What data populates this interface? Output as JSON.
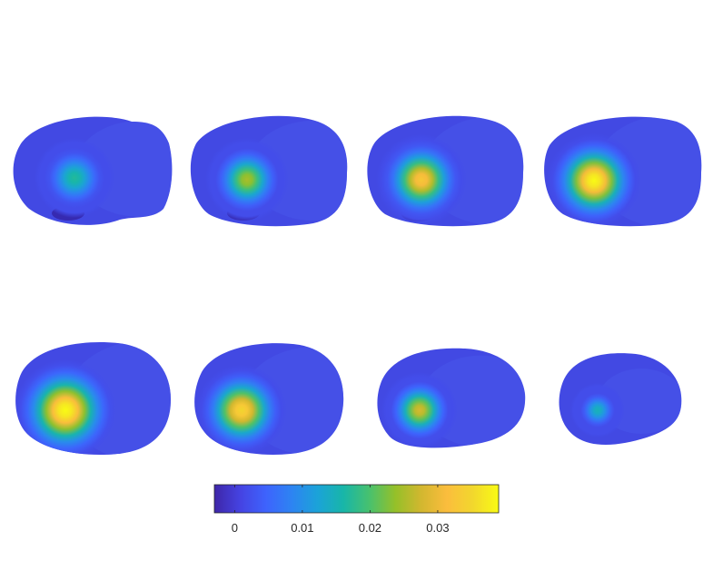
{
  "figure": {
    "panel_count": 8,
    "colormap": "parula",
    "background_color": "#ffffff",
    "outline_color": "#262626"
  },
  "colorbar": {
    "orientation": "horizontal",
    "range": [
      -0.003,
      0.039
    ],
    "ticks": [
      {
        "value": 0,
        "label": "0"
      },
      {
        "value": 0.01,
        "label": "0.01"
      },
      {
        "value": 0.02,
        "label": "0.02"
      },
      {
        "value": 0.03,
        "label": "0.03"
      }
    ],
    "stops": [
      "#3e26a8",
      "#4543e2",
      "#3e63fd",
      "#2d84f2",
      "#1ba3d8",
      "#18b6a8",
      "#48c16e",
      "#95c029",
      "#d2b72f",
      "#fbbd3d",
      "#f2d72d",
      "#f9fb14"
    ]
  },
  "panels": [
    {
      "id": "panel-1",
      "peak": 0.017,
      "spread": 0.55,
      "low_spot": true,
      "base": "#4249e3"
    },
    {
      "id": "panel-2",
      "peak": 0.025,
      "spread": 0.55,
      "low_spot": true,
      "base": "#4249e3"
    },
    {
      "id": "panel-3",
      "peak": 0.033,
      "spread": 0.58,
      "low_spot": true,
      "base": "#4249e3"
    },
    {
      "id": "panel-4",
      "peak": 0.039,
      "spread": 0.6,
      "low_spot": false,
      "base": "#4249e3"
    },
    {
      "id": "panel-5",
      "peak": 0.039,
      "spread": 0.62,
      "low_spot": false,
      "base": "#4249e3"
    },
    {
      "id": "panel-6",
      "peak": 0.035,
      "spread": 0.6,
      "low_spot": false,
      "base": "#4249e3"
    },
    {
      "id": "panel-7",
      "peak": 0.028,
      "spread": 0.55,
      "low_spot": false,
      "base": "#4249e3"
    },
    {
      "id": "panel-8",
      "peak": 0.015,
      "spread": 0.5,
      "low_spot": false,
      "base": "#4249e3"
    }
  ]
}
